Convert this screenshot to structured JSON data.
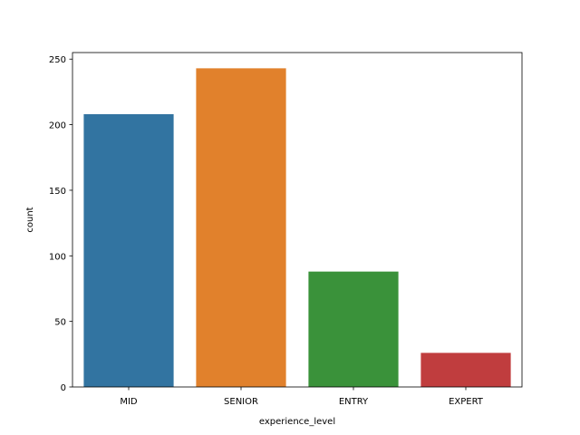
{
  "chart_data": {
    "type": "bar",
    "categories": [
      "MID",
      "SENIOR",
      "ENTRY",
      "EXPERT"
    ],
    "values": [
      208,
      243,
      88,
      26
    ],
    "colors": [
      "#3274a1",
      "#e1812c",
      "#3a923a",
      "#c03d3e"
    ],
    "xlabel": "experience_level",
    "ylabel": "count",
    "ylim": [
      0,
      255
    ],
    "yticks": [
      0,
      50,
      100,
      150,
      200,
      250
    ],
    "grid": false,
    "legend": "none"
  }
}
